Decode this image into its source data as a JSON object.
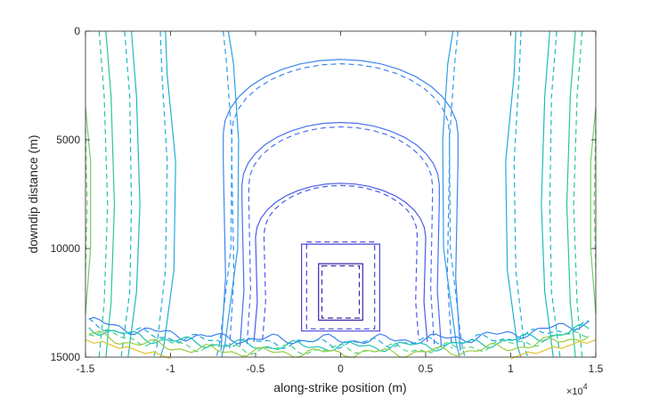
{
  "chart_data": {
    "type": "line",
    "title": "",
    "xlabel": "along-strike position (m)",
    "ylabel": "downdip distance (m)",
    "xlim": [
      -15000,
      15000
    ],
    "ylim": [
      0,
      15000
    ],
    "y_reversed": true,
    "x_exponent_label": "×10",
    "x_exponent_power": "4",
    "x_ticks": [
      {
        "value": -15000,
        "label": "-1.5"
      },
      {
        "value": -10000,
        "label": "-1"
      },
      {
        "value": -5000,
        "label": "-0.5"
      },
      {
        "value": 0,
        "label": "0"
      },
      {
        "value": 5000,
        "label": "0.5"
      },
      {
        "value": 10000,
        "label": "1"
      },
      {
        "value": 15000,
        "label": "1.5"
      }
    ],
    "y_ticks": [
      {
        "value": 0,
        "label": "0"
      },
      {
        "value": 5000,
        "label": "5000"
      },
      {
        "value": 10000,
        "label": "10000"
      },
      {
        "value": 15000,
        "label": "15000"
      }
    ],
    "grid": false,
    "legend": "none",
    "line_styles": [
      "solid",
      "dashed"
    ],
    "colormap": [
      "#3e26a8",
      "#4a4ef0",
      "#3d7ff0",
      "#1ea8e0",
      "#1cc4b4",
      "#4ed28a",
      "#9acd3e",
      "#e3c12c",
      "#f9e21c"
    ],
    "closed_contours": [
      {
        "color": "#3e26a8",
        "solid": [
          [
            -1300,
            10700
          ],
          [
            1300,
            10700
          ],
          [
            1300,
            13300
          ],
          [
            -1300,
            13300
          ]
        ],
        "dashed": [
          [
            -1100,
            10800
          ],
          [
            1100,
            10800
          ],
          [
            1100,
            13200
          ],
          [
            -1100,
            13200
          ]
        ]
      },
      {
        "color": "#4745d8",
        "solid": [
          [
            -2300,
            9800
          ],
          [
            2300,
            9800
          ],
          [
            2300,
            13800
          ],
          [
            -2300,
            13800
          ]
        ],
        "dashed": [
          [
            -2000,
            9700
          ],
          [
            2000,
            9700
          ],
          [
            2000,
            13700
          ],
          [
            -2000,
            13700
          ]
        ]
      }
    ],
    "open_contours": [
      {
        "color": "#4a5ae8",
        "solid": {
          "top": 7000,
          "half_width": 5000,
          "bottom": 14300
        },
        "dashed": {
          "top": 7100,
          "half_width": 4500,
          "bottom": 14200
        }
      },
      {
        "color": "#4a70f0",
        "solid": {
          "top": 4200,
          "half_width": 5800,
          "bottom": 14500
        },
        "dashed": {
          "top": 4400,
          "half_width": 5400,
          "bottom": 14400
        }
      },
      {
        "color": "#3f86ef",
        "solid": {
          "top": 1300,
          "half_width": 6900,
          "bottom": 14700
        },
        "dashed": {
          "top": 1500,
          "half_width": 6400,
          "bottom": 14600
        }
      }
    ],
    "side_contours": [
      {
        "color": "#2f9fe6",
        "solid": [
          [
            6600,
            0
          ],
          [
            6300,
            1500
          ],
          [
            6000,
            5000
          ],
          [
            6050,
            10000
          ],
          [
            6800,
            14400
          ],
          [
            7000,
            15000
          ]
        ],
        "dashed": [
          [
            6900,
            0
          ],
          [
            6700,
            1500
          ],
          [
            6400,
            5000
          ],
          [
            6450,
            10000
          ],
          [
            7100,
            14300
          ],
          [
            7300,
            15000
          ]
        ]
      },
      {
        "color": "#22aed6",
        "solid": [
          [
            10300,
            0
          ],
          [
            10200,
            2000
          ],
          [
            9700,
            6000
          ],
          [
            9800,
            11000
          ],
          [
            10400,
            14500
          ],
          [
            10600,
            15000
          ]
        ],
        "dashed": [
          [
            10600,
            0
          ],
          [
            10500,
            2000
          ],
          [
            10200,
            6000
          ],
          [
            10300,
            11000
          ],
          [
            10800,
            14500
          ],
          [
            11000,
            15000
          ]
        ]
      },
      {
        "color": "#1dbbbe",
        "solid": [
          [
            12300,
            0
          ],
          [
            12000,
            3000
          ],
          [
            11800,
            8000
          ],
          [
            12000,
            12000
          ],
          [
            12500,
            15000
          ]
        ],
        "dashed": [
          [
            12700,
            0
          ],
          [
            12400,
            3000
          ],
          [
            12300,
            8000
          ],
          [
            12400,
            12000
          ],
          [
            12900,
            15000
          ]
        ]
      },
      {
        "color": "#2cc59c",
        "solid": [
          [
            13800,
            0
          ],
          [
            13500,
            3000
          ],
          [
            13300,
            8000
          ],
          [
            13500,
            12500
          ],
          [
            13800,
            15000
          ]
        ],
        "dashed": [
          [
            14200,
            0
          ],
          [
            13900,
            3000
          ],
          [
            13700,
            8000
          ],
          [
            13900,
            12500
          ],
          [
            14200,
            15000
          ]
        ]
      },
      {
        "color": "#6fcf6a",
        "solid": [
          [
            15000,
            3500
          ],
          [
            14700,
            6000
          ],
          [
            14700,
            10000
          ],
          [
            15000,
            13000
          ]
        ],
        "dashed": [
          [
            15000,
            4500
          ],
          [
            14900,
            8000
          ],
          [
            15000,
            11000
          ]
        ]
      }
    ],
    "bottom_noise_color": "#9acd3e",
    "bottom_corner_color": "#e3c12c"
  }
}
